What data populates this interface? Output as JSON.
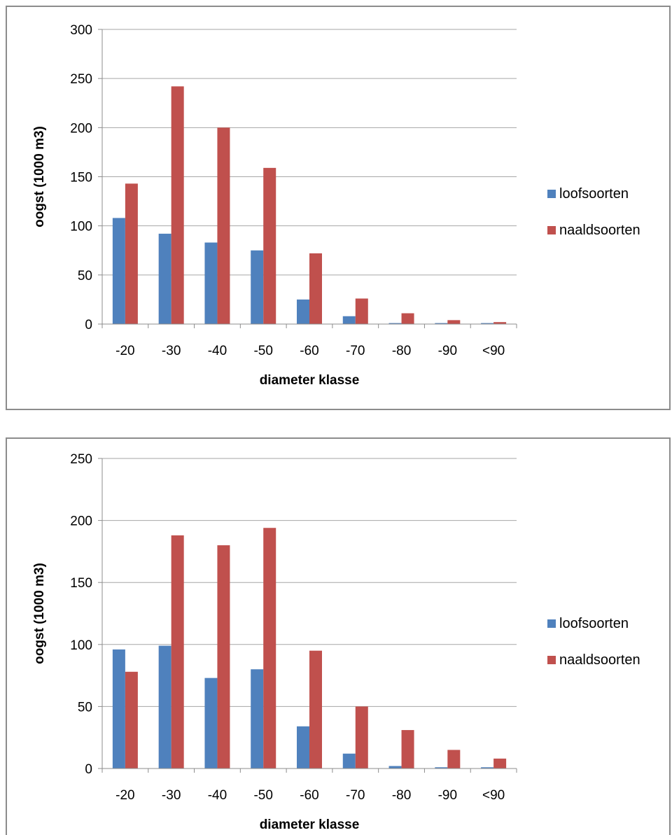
{
  "colors": {
    "loofsoorten": "#4f81bd",
    "naaldsoorten": "#c0504d",
    "grid": "#a6a6a6",
    "axis": "#8c8c8c"
  },
  "chart_data": [
    {
      "type": "bar",
      "categories": [
        "-20",
        "-30",
        "-40",
        "-50",
        "-60",
        "-70",
        "-80",
        "-90",
        "<90"
      ],
      "series": [
        {
          "name": "loofsoorten",
          "values": [
            108,
            92,
            83,
            75,
            25,
            8,
            1,
            1,
            1
          ]
        },
        {
          "name": "naaldsoorten",
          "values": [
            143,
            242,
            200,
            159,
            72,
            26,
            11,
            4,
            2
          ]
        }
      ],
      "xlabel": "diameter klasse",
      "ylabel": "oogst (1000 m3)",
      "ylim": [
        0,
        300
      ],
      "yticks": [
        0,
        50,
        100,
        150,
        200,
        250,
        300
      ],
      "grid": "horizontal",
      "legend": "right"
    },
    {
      "type": "bar",
      "categories": [
        "-20",
        "-30",
        "-40",
        "-50",
        "-60",
        "-70",
        "-80",
        "-90",
        "<90"
      ],
      "series": [
        {
          "name": "loofsoorten",
          "values": [
            96,
            99,
            73,
            80,
            34,
            12,
            2,
            1,
            1
          ]
        },
        {
          "name": "naaldsoorten",
          "values": [
            78,
            188,
            180,
            194,
            95,
            50,
            31,
            15,
            8
          ]
        }
      ],
      "xlabel": "diameter klasse",
      "ylabel": "oogst (1000 m3)",
      "ylim": [
        0,
        250
      ],
      "yticks": [
        0,
        50,
        100,
        150,
        200,
        250
      ],
      "grid": "horizontal",
      "legend": "right"
    }
  ]
}
